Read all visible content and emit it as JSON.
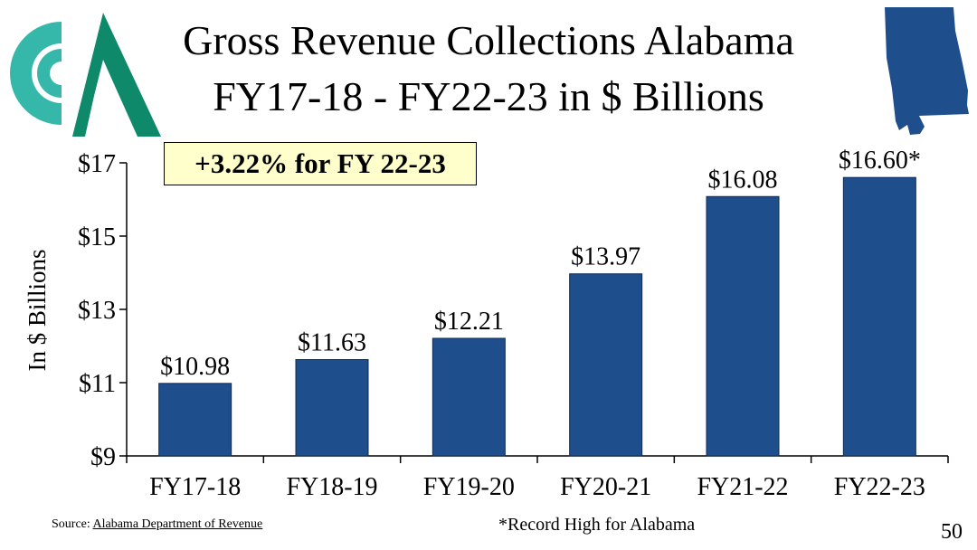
{
  "slide": {
    "title_line1": "Gross Revenue Collections Alabama",
    "title_line2": "FY17-18 - FY22-23 in $ Billions",
    "callout": "+3.22% for FY 22-23",
    "source_prefix": "Source:",
    "source_link": "Alabama Department of Revenue",
    "footnote": "*Record High for Alabama",
    "page_number": "50",
    "logo_icon": "organization-logo-icon",
    "map_icon": "alabama-state-map-icon"
  },
  "colors": {
    "bar": "#1f4e8c",
    "bar_border": "#0f2a55",
    "logo_teal": "#35b8aa",
    "logo_green": "#0e8a6a",
    "map_fill": "#1f4e8c",
    "callout_bg": "#ffffcc"
  },
  "chart_data": {
    "type": "bar",
    "title": "Gross Revenue Collections Alabama FY17-18 - FY22-23 in $ Billions",
    "xlabel": "",
    "ylabel": "In $ Billions",
    "categories": [
      "FY17-18",
      "FY18-19",
      "FY19-20",
      "FY20-21",
      "FY21-22",
      "FY22-23"
    ],
    "values": [
      10.98,
      11.63,
      12.21,
      13.97,
      16.08,
      16.6
    ],
    "data_labels": [
      "$10.98",
      "$11.63",
      "$12.21",
      "$13.97",
      "$16.08",
      "$16.60*"
    ],
    "ylim": [
      9,
      17
    ],
    "yticks": [
      9,
      11,
      13,
      15,
      17
    ],
    "ytick_labels": [
      "$9",
      "$11",
      "$13",
      "$15",
      "$17"
    ],
    "grid": false,
    "legend": "none"
  }
}
